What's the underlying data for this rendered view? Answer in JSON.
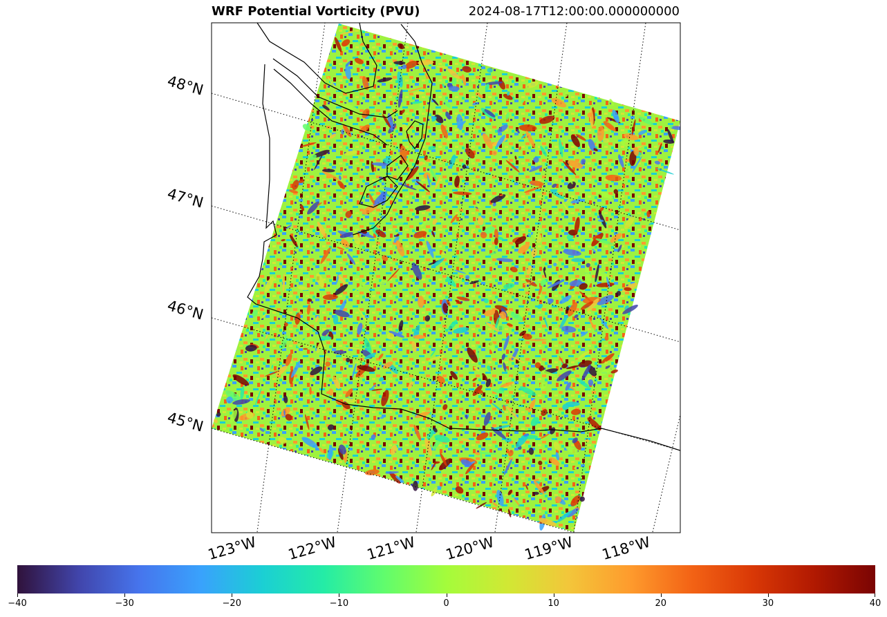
{
  "title": {
    "left": "WRF Potential Vorticity (PVU)",
    "right": "2024-08-17T12:00:00.000000000"
  },
  "chart_data": {
    "type": "heatmap",
    "variable": "Potential Vorticity (PVU)",
    "timestamp": "2024-08-17T12:00:00.000000000",
    "projection": "rotated lat/lon map",
    "lat_labels": [
      "48°N",
      "47°N",
      "46°N",
      "45°N"
    ],
    "lon_labels": [
      "123°W",
      "122°W",
      "121°W",
      "120°W",
      "119°W",
      "118°W"
    ],
    "lat_range": [
      44.5,
      48.3
    ],
    "lon_range": [
      -123.5,
      -117.5
    ],
    "gridlines": true,
    "gridline_style": "dotted",
    "coastlines": true,
    "colormap": "turbo",
    "colorbar": {
      "orientation": "horizontal",
      "vmin": -40,
      "vmax": 40,
      "ticks": [
        -40,
        -30,
        -20,
        -10,
        0,
        10,
        20,
        30,
        40
      ],
      "tick_labels": [
        "−40",
        "−30",
        "−20",
        "−10",
        "0",
        "10",
        "20",
        "30",
        "40"
      ]
    },
    "colors": [
      "#30123b",
      "#4145ab",
      "#4675ed",
      "#39a2fc",
      "#1bcfd4",
      "#24eca6",
      "#61fc6c",
      "#a4fc3b",
      "#d1e834",
      "#f3c63a",
      "#fe9b2d",
      "#f36315",
      "#d93806",
      "#b11901",
      "#7a0403"
    ]
  }
}
